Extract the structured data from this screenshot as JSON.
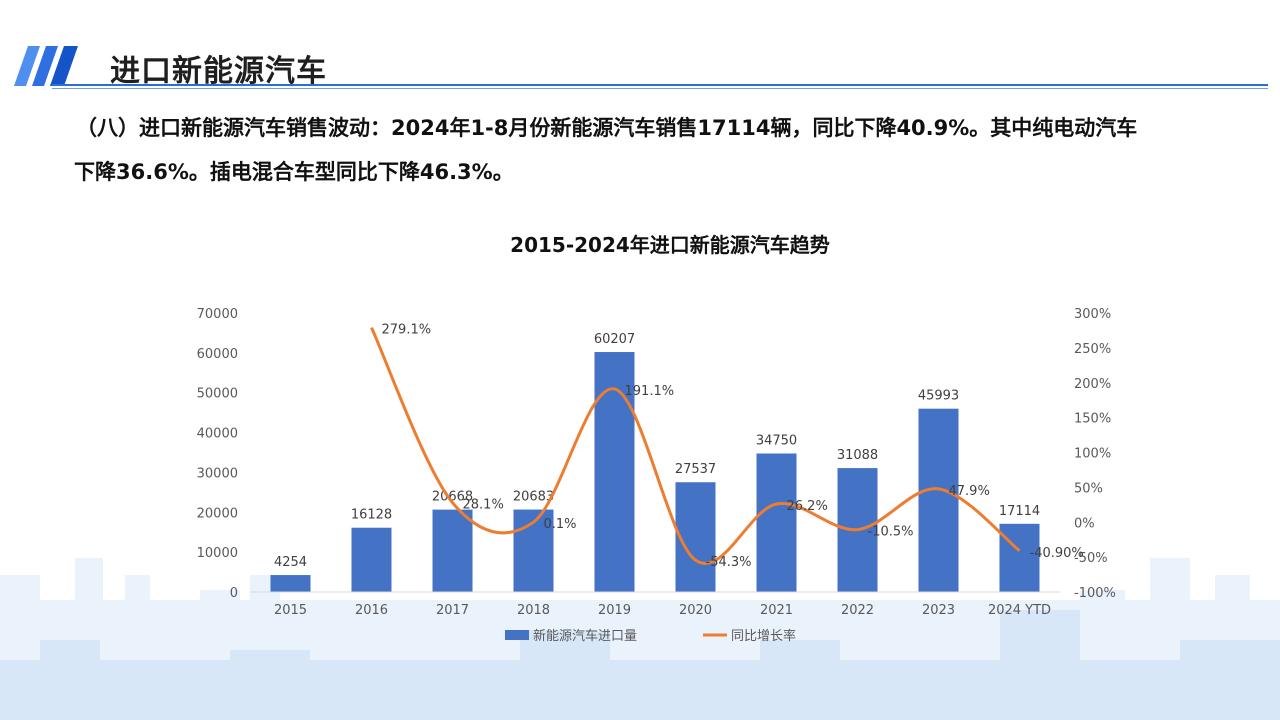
{
  "header": {
    "title": "进口新能源汽车"
  },
  "summary": {
    "line1": "（八）进口新能源汽车销售波动：2024年1-8月份新能源汽车销售17114辆，同比下降40.9%。其中纯电动汽车",
    "line2": "下降36.6%。插电混合车型同比下降46.3%。"
  },
  "colors": {
    "accent": "#2b6fd6",
    "bar": "#4472c4",
    "line": "#ed7d31"
  },
  "chart_data": {
    "type": "bar+line",
    "title": "2015-2024年进口新能源汽车趋势",
    "categories": [
      "2015",
      "2016",
      "2017",
      "2018",
      "2019",
      "2020",
      "2021",
      "2022",
      "2023",
      "2024 YTD"
    ],
    "series": [
      {
        "name": "新能源汽车进口量",
        "type": "bar",
        "axis": "left",
        "values": [
          4254,
          16128,
          20668,
          20683,
          60207,
          27537,
          34750,
          31088,
          45993,
          17114
        ],
        "labels": [
          "4254",
          "16128",
          "20668",
          "20683",
          "60207",
          "27537",
          "34750",
          "31088",
          "45993",
          "17114"
        ]
      },
      {
        "name": "同比增长率",
        "type": "line",
        "axis": "right",
        "values": [
          null,
          279.1,
          28.1,
          0.1,
          191.1,
          -54.3,
          26.2,
          -10.5,
          47.9,
          -40.9
        ],
        "labels": [
          "",
          "279.1%",
          "28.1%",
          "0.1%",
          "191.1%",
          "-54.3%",
          "26.2%",
          "-10.5%",
          "47.9%",
          "-40.90%"
        ]
      }
    ],
    "y_left": {
      "min": 0,
      "max": 70000,
      "ticks": [
        "0",
        "10000",
        "20000",
        "30000",
        "40000",
        "50000",
        "60000",
        "70000"
      ]
    },
    "y_right": {
      "min": -100,
      "max": 300,
      "ticks": [
        "-100%",
        "-50%",
        "0%",
        "50%",
        "100%",
        "150%",
        "200%",
        "250%",
        "300%"
      ]
    },
    "grid": false,
    "legend": "bottom"
  }
}
